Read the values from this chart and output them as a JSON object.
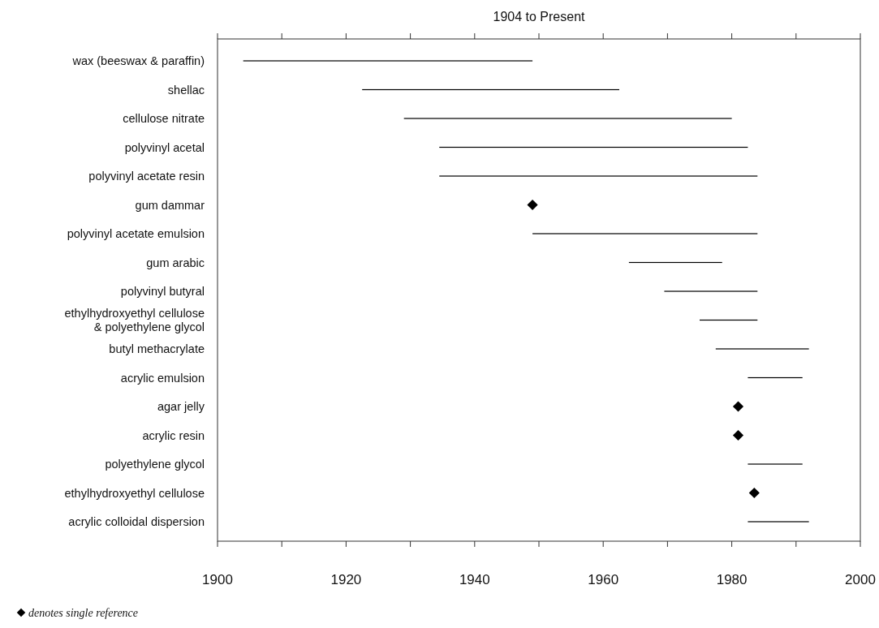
{
  "chart_data": {
    "type": "bar",
    "title": "1904 to Present",
    "orientation": "horizontal",
    "categories": [
      "wax (beeswax & paraffin)",
      "shellac",
      "cellulose nitrate",
      "polyvinyl acetal",
      "polyvinyl acetate resin",
      "gum dammar",
      "polyvinyl acetate emulsion",
      "gum arabic",
      "polyvinyl butyral",
      "ethylhydroxyethyl cellulose\n& polyethylene glycol",
      "butyl methacrylate",
      "acrylic emulsion",
      "agar jelly",
      "acrylic resin",
      "polyethylene glycol",
      "ethylhydroxyethyl cellulose",
      "acrylic colloidal dispersion"
    ],
    "series": [
      {
        "color": "#000000",
        "base": [
          1904,
          1922.5,
          1929,
          1934.5,
          1934.5,
          null,
          1949,
          1964,
          1969.5,
          1975,
          1977.5,
          1982.5,
          null,
          null,
          1982.5,
          null,
          1982.5
        ],
        "values": [
          45,
          40,
          51,
          48,
          49.5,
          null,
          35,
          14.5,
          14.5,
          9,
          14.5,
          8.5,
          null,
          null,
          8.5,
          null,
          9.5
        ]
      },
      {
        "type": "scatter",
        "name": "denotes single reference",
        "marker": "diamond",
        "color": "#000000",
        "values": [
          null,
          null,
          null,
          null,
          null,
          1949,
          null,
          null,
          null,
          null,
          null,
          null,
          1981,
          1981,
          null,
          1983.5,
          null
        ]
      }
    ],
    "xlim": [
      1900,
      2000
    ],
    "xticks": [
      1900,
      {
        "value": 1910,
        "label": null
      },
      1920,
      {
        "value": 1930,
        "label": null
      },
      1940,
      {
        "value": 1950,
        "label": null
      },
      1960,
      {
        "value": 1970,
        "label": null
      },
      1980,
      {
        "value": 1990,
        "label": null
      },
      2000
    ],
    "legend": "bottom left"
  }
}
